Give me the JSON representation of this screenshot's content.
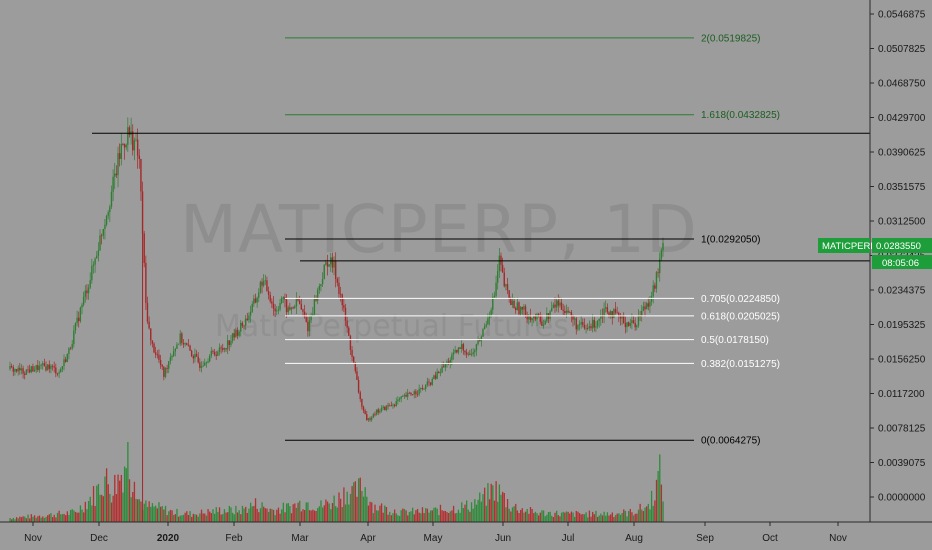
{
  "colors": {
    "background": "#9c9c9c",
    "up": "#2e7d32",
    "down": "#a52727",
    "volume_up": "#2f8a3a",
    "volume_down": "#b23030",
    "fib_white": "#ffffff",
    "fib_green": "#2e7d32",
    "hline": "#000000",
    "tag_green": "#1e9e3a",
    "tag_black": "#000000"
  },
  "watermark": {
    "title": "MATICPERP, 1D",
    "subtitle": "Matic Perpetual Futures"
  },
  "price_tag": {
    "label": "MATICPERP",
    "value": "0.0283550",
    "countdown": "08:05:06"
  },
  "chart_data": {
    "type": "candlestick",
    "symbol": "MATICPERP",
    "interval": "1D",
    "x_ticks": [
      "Nov",
      "Dec",
      "2020",
      "Feb",
      "Mar",
      "Apr",
      "May",
      "Jun",
      "Jul",
      "Aug",
      "Sep",
      "Oct",
      "Nov"
    ],
    "y_ticks": [
      "0.0546875",
      "0.0507825",
      "0.0468750",
      "0.0429700",
      "0.0390625",
      "0.0351575",
      "0.0312500",
      "0.0273425",
      "0.0234375",
      "0.0195325",
      "0.0156250",
      "0.0117200",
      "0.0078125",
      "0.0039075",
      "0.0000000"
    ],
    "horizontal_lines": [
      {
        "value": 0.0411925,
        "label": "0.0411925"
      },
      {
        "value": 0.02673,
        "label": "0.0267300"
      }
    ],
    "fib_levels": [
      {
        "ratio": "2",
        "value": 0.0519825,
        "label": "2(0.0519825)",
        "color": "green"
      },
      {
        "ratio": "1.618",
        "value": 0.0432825,
        "label": "1.618(0.0432825)",
        "color": "green"
      },
      {
        "ratio": "1",
        "value": 0.029205,
        "label": "1(0.0292050)",
        "color": "black"
      },
      {
        "ratio": "0.705",
        "value": 0.022485,
        "label": "0.705(0.0224850)",
        "color": "white"
      },
      {
        "ratio": "0.618",
        "value": 0.0205025,
        "label": "0.618(0.0205025)",
        "color": "white"
      },
      {
        "ratio": "0.5",
        "value": 0.017815,
        "label": "0.5(0.0178150)",
        "color": "white"
      },
      {
        "ratio": "0.382",
        "value": 0.0151275,
        "label": "0.382(0.0151275)",
        "color": "white"
      },
      {
        "ratio": "0",
        "value": 0.0064275,
        "label": "0(0.0064275)",
        "color": "black"
      }
    ],
    "last_price": 0.028355,
    "close_series": [
      [
        0,
        0.0145
      ],
      [
        8,
        0.0142
      ],
      [
        16,
        0.0146
      ],
      [
        24,
        0.0148
      ],
      [
        30,
        0.0141
      ],
      [
        36,
        0.0165
      ],
      [
        42,
        0.0205
      ],
      [
        50,
        0.0255
      ],
      [
        56,
        0.03
      ],
      [
        62,
        0.0345
      ],
      [
        68,
        0.0395
      ],
      [
        72,
        0.0412
      ],
      [
        76,
        0.0402
      ],
      [
        79,
        0.038
      ],
      [
        81,
        0.03
      ],
      [
        83,
        0.0218
      ],
      [
        86,
        0.0175
      ],
      [
        90,
        0.016
      ],
      [
        94,
        0.0138
      ],
      [
        98,
        0.016
      ],
      [
        104,
        0.018
      ],
      [
        110,
        0.0165
      ],
      [
        116,
        0.015
      ],
      [
        122,
        0.016
      ],
      [
        130,
        0.0168
      ],
      [
        138,
        0.0185
      ],
      [
        144,
        0.02
      ],
      [
        150,
        0.0222
      ],
      [
        154,
        0.0245
      ],
      [
        158,
        0.0232
      ],
      [
        162,
        0.021
      ],
      [
        166,
        0.0225
      ],
      [
        170,
        0.021
      ],
      [
        176,
        0.0222
      ],
      [
        182,
        0.0192
      ],
      [
        186,
        0.022
      ],
      [
        190,
        0.0245
      ],
      [
        194,
        0.0268
      ],
      [
        198,
        0.026
      ],
      [
        202,
        0.0228
      ],
      [
        206,
        0.019
      ],
      [
        210,
        0.015
      ],
      [
        214,
        0.011
      ],
      [
        218,
        0.0085
      ],
      [
        222,
        0.0095
      ],
      [
        228,
        0.01
      ],
      [
        234,
        0.0105
      ],
      [
        240,
        0.0112
      ],
      [
        246,
        0.0118
      ],
      [
        252,
        0.0122
      ],
      [
        258,
        0.0132
      ],
      [
        264,
        0.0145
      ],
      [
        270,
        0.0158
      ],
      [
        276,
        0.017
      ],
      [
        282,
        0.016
      ],
      [
        288,
        0.0182
      ],
      [
        292,
        0.0205
      ],
      [
        296,
        0.0228
      ],
      [
        299,
        0.0268
      ],
      [
        302,
        0.024
      ],
      [
        306,
        0.022
      ],
      [
        312,
        0.0212
      ],
      [
        318,
        0.0205
      ],
      [
        326,
        0.0198
      ],
      [
        334,
        0.022
      ],
      [
        340,
        0.0212
      ],
      [
        346,
        0.0195
      ],
      [
        352,
        0.019
      ],
      [
        358,
        0.0198
      ],
      [
        364,
        0.0215
      ],
      [
        370,
        0.0205
      ],
      [
        376,
        0.0198
      ],
      [
        382,
        0.0196
      ],
      [
        386,
        0.021
      ],
      [
        390,
        0.0222
      ],
      [
        394,
        0.024
      ],
      [
        397,
        0.0265
      ],
      [
        399,
        0.0283
      ]
    ],
    "volume_series": [
      [
        0,
        0.05
      ],
      [
        20,
        0.08
      ],
      [
        40,
        0.12
      ],
      [
        52,
        0.35
      ],
      [
        58,
        0.55
      ],
      [
        62,
        0.4
      ],
      [
        68,
        0.6
      ],
      [
        72,
        0.85
      ],
      [
        74,
        0.5
      ],
      [
        76,
        0.7
      ],
      [
        78,
        0.3
      ],
      [
        80,
        0.25
      ],
      [
        82,
        0.2
      ],
      [
        90,
        0.18
      ],
      [
        100,
        0.12
      ],
      [
        110,
        0.1
      ],
      [
        120,
        0.12
      ],
      [
        130,
        0.15
      ],
      [
        140,
        0.14
      ],
      [
        150,
        0.22
      ],
      [
        160,
        0.15
      ],
      [
        170,
        0.18
      ],
      [
        180,
        0.25
      ],
      [
        190,
        0.2
      ],
      [
        200,
        0.28
      ],
      [
        206,
        0.4
      ],
      [
        210,
        0.35
      ],
      [
        216,
        0.45
      ],
      [
        222,
        0.2
      ],
      [
        240,
        0.12
      ],
      [
        260,
        0.14
      ],
      [
        280,
        0.2
      ],
      [
        290,
        0.3
      ],
      [
        296,
        0.42
      ],
      [
        300,
        0.35
      ],
      [
        306,
        0.2
      ],
      [
        320,
        0.12
      ],
      [
        340,
        0.1
      ],
      [
        360,
        0.1
      ],
      [
        380,
        0.12
      ],
      [
        390,
        0.2
      ],
      [
        395,
        0.45
      ],
      [
        397,
        0.6
      ],
      [
        399,
        0.4
      ]
    ],
    "volume_axis_max": 0.011,
    "y_range": [
      0,
      0.0555
    ],
    "grid": false
  }
}
